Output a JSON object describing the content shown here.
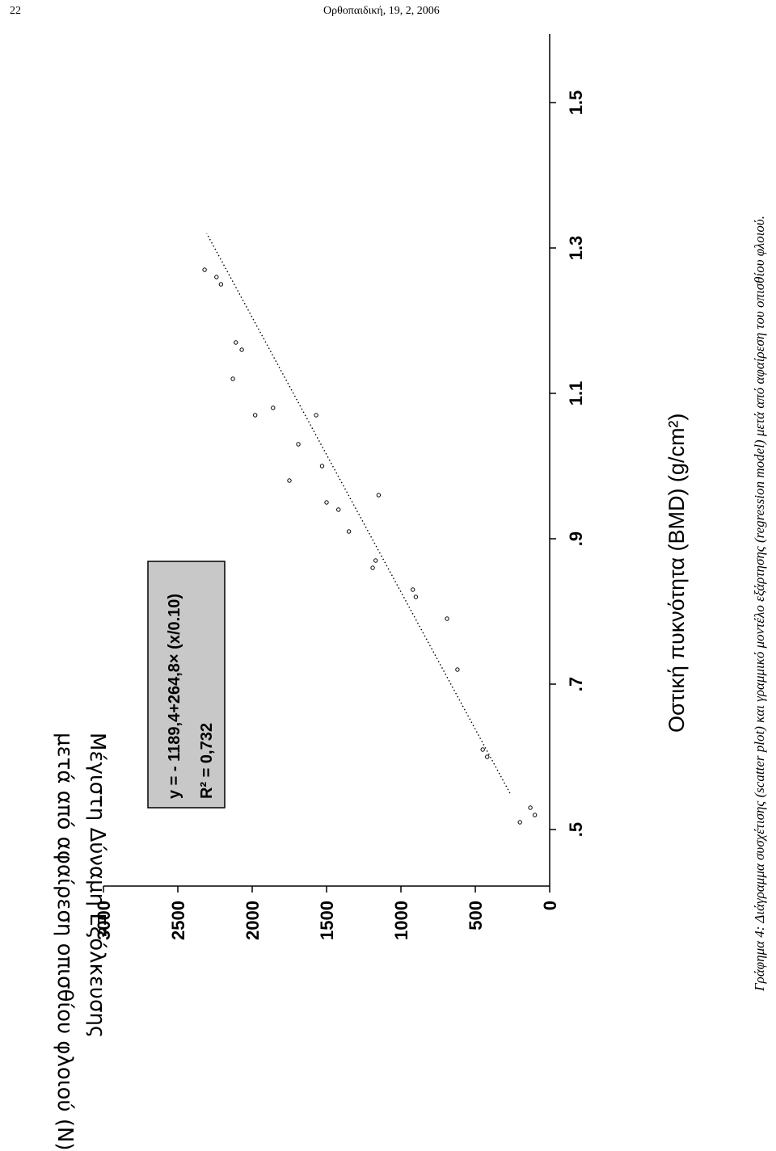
{
  "header": {
    "page_number": "22",
    "journal": "Ορθοπαιδική, 19, 2, 2006"
  },
  "caption": "Γράφημα 4: Διάγραμμα συσχέτισης (scatter plot) και γραμμικό μοντέλο εξάρτησης (regression model) μετά από αφαίρεση του οπισθίου φλοιού.",
  "chart_data": {
    "type": "scatter",
    "xlabel": "Οστική πυκνότητα (BMD) (g/cm²)",
    "ylabel_lines": [
      "Μέγιστη Δύναμη Εξόλκευσης",
      "μετά από αφαίρεση οπισθίου φλοιού (N)"
    ],
    "x_ticks": [
      ".5",
      ".7",
      ".9",
      "1.1",
      "1.3",
      "1.5"
    ],
    "x_tick_values": [
      0.5,
      0.7,
      0.9,
      1.1,
      1.3,
      1.5
    ],
    "y_ticks": [
      "0",
      "500",
      "1000",
      "1500",
      "2000",
      "2500",
      "3000"
    ],
    "y_tick_values": [
      0,
      500,
      1000,
      1500,
      2000,
      2500,
      3000
    ],
    "xlim": [
      0.5,
      1.55
    ],
    "ylim": [
      0,
      3000
    ],
    "equation": "y = - 1189,4+264,8× (x/0.10)",
    "r2_label": "R² = 0,732",
    "regression": {
      "intercept": -1189.4,
      "slope_per_0_1": 264.8,
      "x_start": 0.55,
      "x_end": 1.32
    },
    "points": [
      {
        "x": 0.52,
        "y": 100
      },
      {
        "x": 0.53,
        "y": 130
      },
      {
        "x": 0.51,
        "y": 200
      },
      {
        "x": 0.6,
        "y": 420
      },
      {
        "x": 0.61,
        "y": 450
      },
      {
        "x": 0.72,
        "y": 620
      },
      {
        "x": 0.79,
        "y": 690
      },
      {
        "x": 0.82,
        "y": 900
      },
      {
        "x": 0.83,
        "y": 920
      },
      {
        "x": 0.87,
        "y": 1170
      },
      {
        "x": 0.86,
        "y": 1190
      },
      {
        "x": 0.91,
        "y": 1350
      },
      {
        "x": 0.94,
        "y": 1420
      },
      {
        "x": 0.95,
        "y": 1500
      },
      {
        "x": 0.96,
        "y": 1150
      },
      {
        "x": 1.0,
        "y": 1530
      },
      {
        "x": 0.98,
        "y": 1750
      },
      {
        "x": 1.03,
        "y": 1690
      },
      {
        "x": 1.07,
        "y": 1570
      },
      {
        "x": 1.08,
        "y": 1860
      },
      {
        "x": 1.12,
        "y": 2130
      },
      {
        "x": 1.07,
        "y": 1980
      },
      {
        "x": 1.17,
        "y": 2110
      },
      {
        "x": 1.16,
        "y": 2070
      },
      {
        "x": 1.26,
        "y": 2240
      },
      {
        "x": 1.25,
        "y": 2210
      },
      {
        "x": 1.27,
        "y": 2320
      }
    ]
  }
}
